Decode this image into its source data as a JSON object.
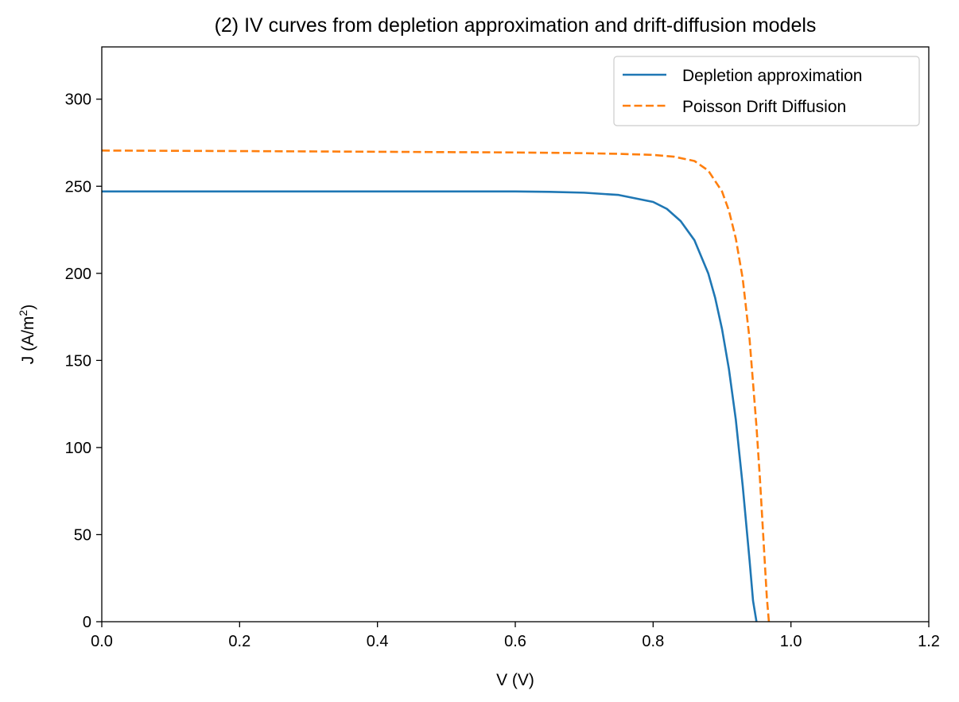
{
  "chart_data": {
    "type": "line",
    "title": "(2) IV curves from depletion approximation and drift-diffusion models",
    "xlabel": "V (V)",
    "ylabel_main": "J (A/m",
    "ylabel_sup": "2",
    "ylabel_end": ")",
    "xlim": [
      0.0,
      1.2
    ],
    "ylim": [
      0,
      330
    ],
    "xticks": [
      "0.0",
      "0.2",
      "0.4",
      "0.6",
      "0.8",
      "1.0",
      "1.2"
    ],
    "yticks": [
      "0",
      "50",
      "100",
      "150",
      "200",
      "250",
      "300"
    ],
    "grid": false,
    "legend_position": "top-right",
    "series": [
      {
        "name": "Depletion approximation",
        "color": "#1f77b4",
        "style": "solid",
        "x": [
          0.0,
          0.2,
          0.4,
          0.6,
          0.65,
          0.7,
          0.75,
          0.8,
          0.82,
          0.84,
          0.86,
          0.88,
          0.89,
          0.9,
          0.91,
          0.92,
          0.93,
          0.94,
          0.945,
          0.95
        ],
        "y": [
          247,
          247,
          247,
          247,
          246.8,
          246.3,
          245,
          241,
          237,
          230,
          219,
          200,
          186,
          168,
          145,
          116,
          78,
          35,
          12,
          0
        ]
      },
      {
        "name": "Poisson Drift Diffusion",
        "color": "#ff7f0e",
        "style": "dashed",
        "x": [
          0.0,
          0.2,
          0.4,
          0.6,
          0.7,
          0.75,
          0.8,
          0.83,
          0.86,
          0.88,
          0.9,
          0.91,
          0.92,
          0.93,
          0.94,
          0.95,
          0.955,
          0.96,
          0.965,
          0.968
        ],
        "y": [
          270.5,
          270.2,
          269.8,
          269.4,
          269,
          268.6,
          268,
          267,
          264.5,
          259,
          247,
          236,
          220,
          197,
          162,
          112,
          82,
          48,
          14,
          0
        ]
      }
    ]
  }
}
